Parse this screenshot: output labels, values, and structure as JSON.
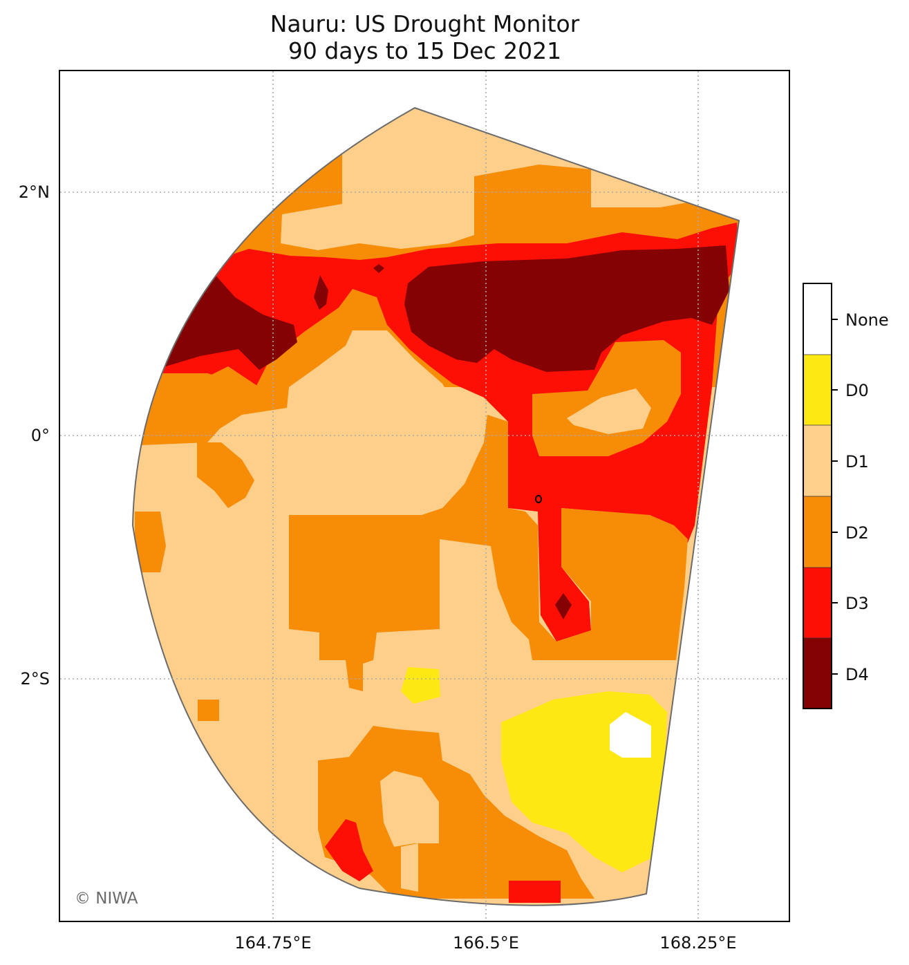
{
  "title": {
    "line1": "Nauru: US Drought Monitor",
    "line2": "90 days to 15 Dec 2021"
  },
  "map": {
    "lon_ticks": [
      "164.75°E",
      "166.5°E",
      "168.25°E"
    ],
    "lat_ticks": [
      "2°N",
      "0°",
      "2°S"
    ],
    "credit": "© NIWA"
  },
  "legend": {
    "items": [
      {
        "label": "None",
        "color": "#ffffff"
      },
      {
        "label": "D0",
        "color": "#fee814"
      },
      {
        "label": "D1",
        "color": "#fdcf8a"
      },
      {
        "label": "D2",
        "color": "#f78c07"
      },
      {
        "label": "D3",
        "color": "#fe0f05"
      },
      {
        "label": "D4",
        "color": "#850204"
      }
    ]
  }
}
